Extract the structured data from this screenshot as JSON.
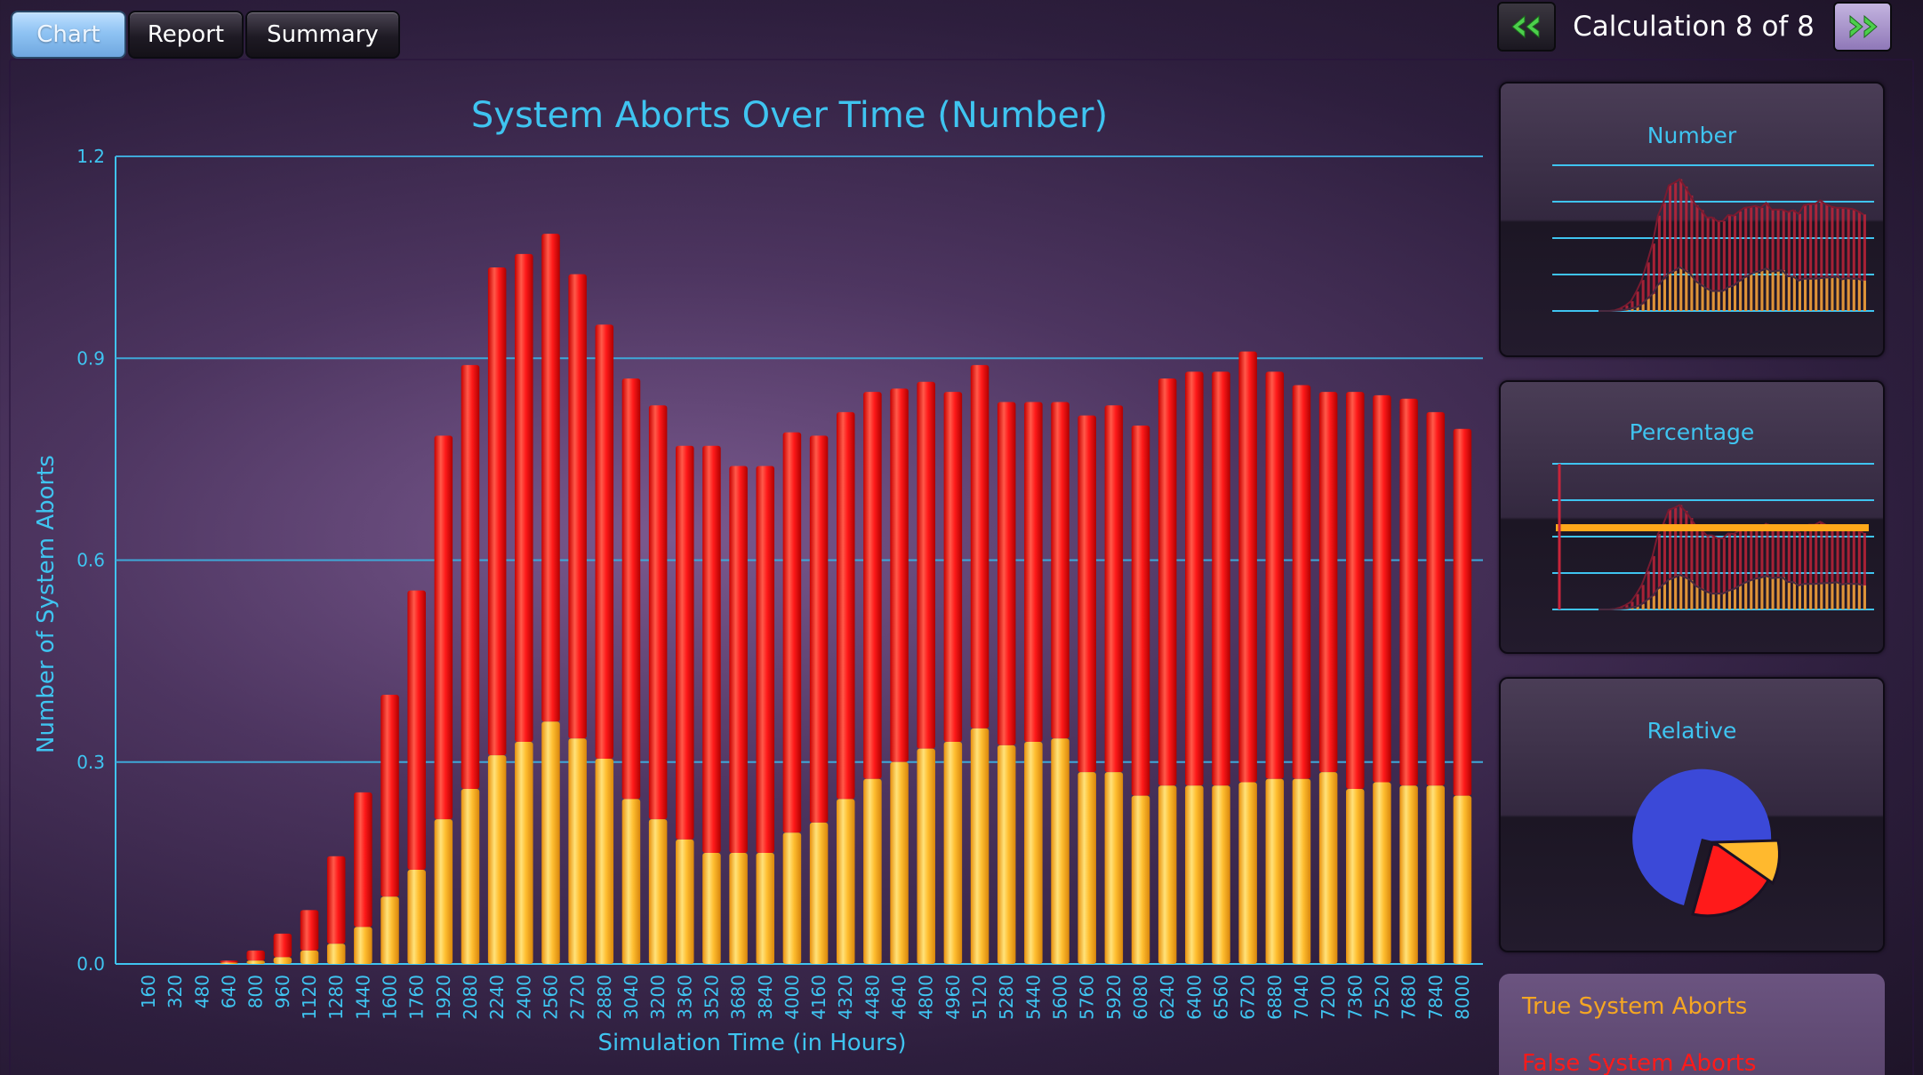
{
  "tabs": [
    {
      "label": "Chart",
      "active": true
    },
    {
      "label": "Report",
      "active": false
    },
    {
      "label": "Summary",
      "active": false
    }
  ],
  "navigation": {
    "label": "Calculation 8 of 8",
    "prev_icon": "double-chevron-left-icon",
    "next_icon": "double-chevron-right-icon"
  },
  "colors": {
    "accent": "#3fc4f0",
    "true_aborts": "#ffb92e",
    "false_aborts": "#ff1a1a",
    "pie_blue": "#3b49d8"
  },
  "chart_data": {
    "type": "bar",
    "stacked": true,
    "title": "System Aborts Over Time (Number)",
    "xlabel": "Simulation Time (in Hours)",
    "ylabel": "Number of System Aborts",
    "ylim": [
      0,
      1.2
    ],
    "yticks": [
      "0.0",
      "0.3",
      "0.6",
      "0.9",
      "1.2"
    ],
    "grid": true,
    "categories": [
      "160",
      "320",
      "480",
      "640",
      "800",
      "960",
      "1120",
      "1280",
      "1440",
      "1600",
      "1760",
      "1920",
      "2080",
      "2240",
      "2400",
      "2560",
      "2720",
      "2880",
      "3040",
      "3200",
      "3360",
      "3520",
      "3680",
      "3840",
      "4000",
      "4160",
      "4320",
      "4480",
      "4640",
      "4800",
      "4960",
      "5120",
      "5280",
      "5440",
      "5600",
      "5760",
      "5920",
      "6080",
      "6240",
      "6400",
      "6560",
      "6720",
      "6880",
      "7040",
      "7200",
      "7360",
      "7520",
      "7680",
      "7840",
      "8000"
    ],
    "series": [
      {
        "name": "True System Aborts",
        "values": [
          0,
          0,
          0,
          0.002,
          0.005,
          0.01,
          0.02,
          0.03,
          0.055,
          0.1,
          0.14,
          0.215,
          0.26,
          0.31,
          0.33,
          0.36,
          0.335,
          0.305,
          0.245,
          0.215,
          0.185,
          0.165,
          0.165,
          0.165,
          0.195,
          0.21,
          0.245,
          0.275,
          0.3,
          0.32,
          0.33,
          0.35,
          0.325,
          0.33,
          0.335,
          0.285,
          0.285,
          0.25,
          0.265,
          0.265,
          0.265,
          0.27,
          0.275,
          0.275,
          0.285,
          0.26,
          0.27,
          0.265,
          0.265,
          0.25
        ]
      },
      {
        "name": "False System Aborts",
        "values": [
          0,
          0,
          0,
          0.003,
          0.015,
          0.035,
          0.06,
          0.13,
          0.2,
          0.3,
          0.415,
          0.57,
          0.63,
          0.725,
          0.725,
          0.725,
          0.69,
          0.645,
          0.625,
          0.615,
          0.585,
          0.605,
          0.575,
          0.575,
          0.595,
          0.575,
          0.575,
          0.575,
          0.555,
          0.545,
          0.52,
          0.54,
          0.51,
          0.505,
          0.5,
          0.53,
          0.545,
          0.55,
          0.605,
          0.615,
          0.615,
          0.64,
          0.605,
          0.585,
          0.565,
          0.59,
          0.575,
          0.575,
          0.555,
          0.545
        ]
      }
    ]
  },
  "panels": {
    "number": {
      "title": "Number"
    },
    "percentage": {
      "title": "Percentage"
    },
    "relative": {
      "title": "Relative"
    }
  },
  "legend": [
    {
      "label": "True System Aborts",
      "color": "#f5a623"
    },
    {
      "label": "False System Aborts",
      "color": "#ff1a1a"
    }
  ]
}
